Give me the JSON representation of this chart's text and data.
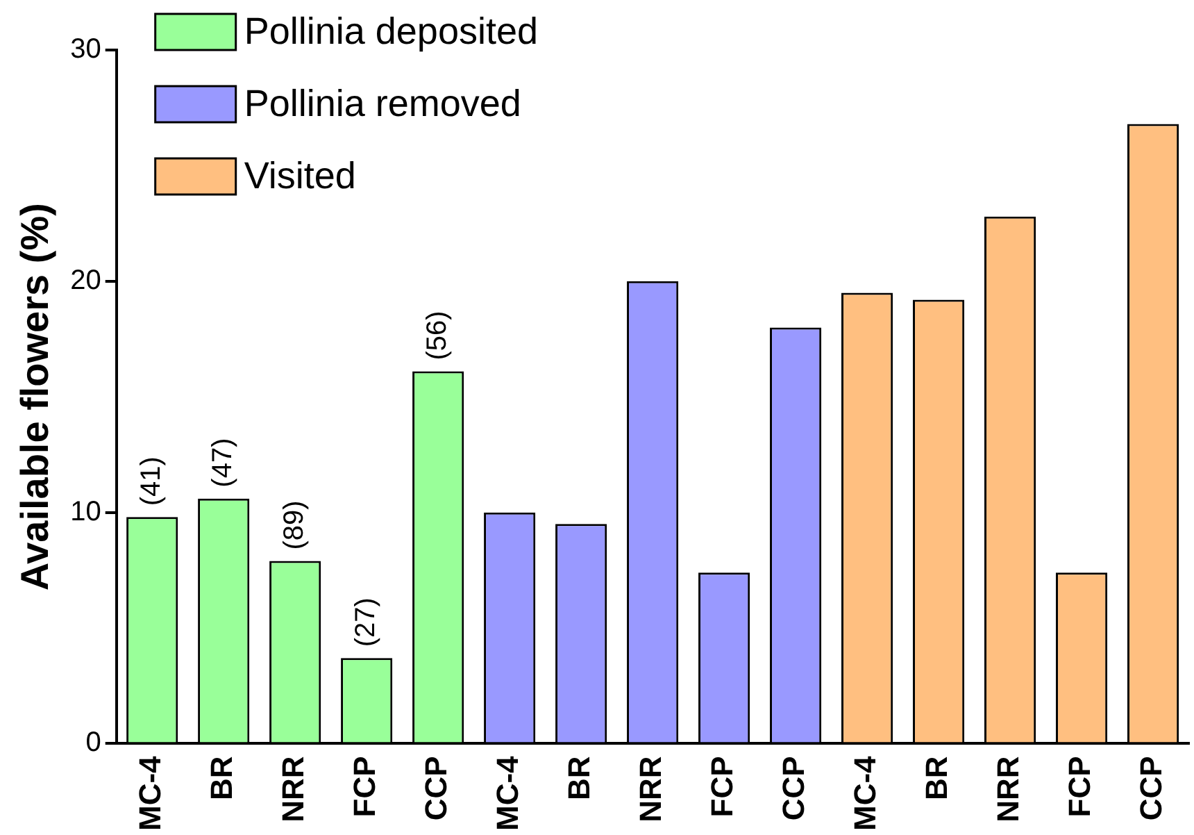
{
  "chart_data": {
    "type": "bar",
    "ylabel": "Available flowers (%)",
    "categories": [
      "MC-4",
      "BR",
      "NRR",
      "FCP",
      "CCP",
      "MC-4",
      "BR",
      "NRR",
      "FCP",
      "CCP",
      "MC-4",
      "BR",
      "NRR",
      "FCP",
      "CCP"
    ],
    "series": [
      {
        "name": "Pollinia deposited",
        "color": "#99ff99",
        "values": [
          9.8,
          10.6,
          7.9,
          3.7,
          16.1,
          null,
          null,
          null,
          null,
          null,
          null,
          null,
          null,
          null,
          null
        ]
      },
      {
        "name": "Pollinia removed",
        "color": "#9999ff",
        "values": [
          null,
          null,
          null,
          null,
          null,
          10.0,
          9.5,
          20.0,
          7.4,
          18.0,
          null,
          null,
          null,
          null,
          null
        ]
      },
      {
        "name": "Visited",
        "color": "#ffbf80",
        "values": [
          null,
          null,
          null,
          null,
          null,
          null,
          null,
          null,
          null,
          null,
          19.5,
          19.2,
          22.8,
          7.4,
          26.8
        ]
      }
    ],
    "ylim": [
      0,
      30
    ],
    "yticks": [
      0,
      10,
      20,
      30
    ],
    "grid": false,
    "legend": "top left",
    "annotations": [
      {
        "text": "(41)",
        "x": "MC-4",
        "y": 9.8
      },
      {
        "text": "(47)",
        "x": "BR",
        "y": 10.6
      },
      {
        "text": "(89)",
        "x": "NRR",
        "y": 7.9
      },
      {
        "text": "(27)",
        "x": "FCP",
        "y": 3.7
      },
      {
        "text": "(56)",
        "x": "CCP",
        "y": 16.1
      }
    ]
  }
}
